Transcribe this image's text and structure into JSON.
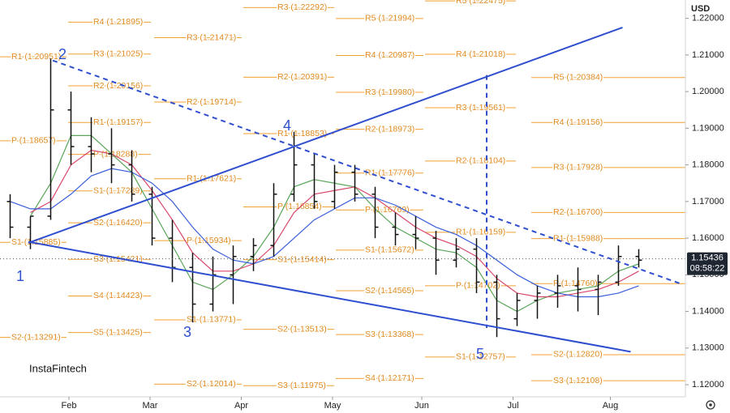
{
  "chart_data": {
    "type": "ohlc",
    "currency": "USD",
    "watermark": "InstaFintech",
    "ylim": [
      1.1167,
      1.225
    ],
    "yticks": [
      {
        "value": 1.22,
        "label": "1.22000"
      },
      {
        "value": 1.21,
        "label": "1.21000"
      },
      {
        "value": 1.2,
        "label": "1.20000"
      },
      {
        "value": 1.19,
        "label": "1.19000"
      },
      {
        "value": 1.18,
        "label": "1.18000"
      },
      {
        "value": 1.17,
        "label": "1.17000"
      },
      {
        "value": 1.16,
        "label": "1.16000"
      },
      {
        "value": 1.15,
        "label": "1.15000"
      },
      {
        "value": 1.14,
        "label": "1.14000"
      },
      {
        "value": 1.13,
        "label": "1.13000"
      },
      {
        "value": 1.12,
        "label": "1.12000"
      }
    ],
    "xlim": [
      0,
      33.8
    ],
    "xticks": [
      {
        "value": 3.4,
        "label": "Feb"
      },
      {
        "value": 7.4,
        "label": "Mar"
      },
      {
        "value": 11.9,
        "label": "Apr"
      },
      {
        "value": 16.4,
        "label": "May"
      },
      {
        "value": 20.8,
        "label": "Jun"
      },
      {
        "value": 25.3,
        "label": "Jul"
      },
      {
        "value": 30.1,
        "label": "Aug"
      }
    ],
    "grid": false,
    "bar_color": "#111111",
    "open": [
      1.17,
      1.163,
      1.166,
      1.195,
      1.185,
      1.183,
      1.18,
      1.172,
      1.16,
      1.152,
      1.142,
      1.15,
      1.155,
      1.158,
      1.172,
      1.18,
      1.17,
      1.178,
      1.172,
      1.163,
      1.161,
      1.16,
      1.154,
      1.157,
      1.148,
      1.138,
      1.143,
      1.145,
      1.147,
      1.146,
      1.148,
      1.155
    ],
    "high": [
      1.172,
      1.166,
      1.209,
      1.2,
      1.193,
      1.19,
      1.184,
      1.174,
      1.165,
      1.156,
      1.155,
      1.158,
      1.16,
      1.175,
      1.189,
      1.183,
      1.18,
      1.18,
      1.174,
      1.167,
      1.166,
      1.162,
      1.16,
      1.16,
      1.15,
      1.145,
      1.147,
      1.15,
      1.152,
      1.15,
      1.158,
      1.157
    ],
    "low": [
      1.16,
      1.157,
      1.165,
      1.18,
      1.178,
      1.175,
      1.17,
      1.158,
      1.148,
      1.137,
      1.14,
      1.142,
      1.151,
      1.155,
      1.17,
      1.168,
      1.168,
      1.17,
      1.16,
      1.158,
      1.157,
      1.15,
      1.152,
      1.145,
      1.133,
      1.136,
      1.138,
      1.141,
      1.14,
      1.139,
      1.147,
      1.152
    ],
    "close": [
      1.163,
      1.166,
      1.195,
      1.185,
      1.183,
      1.18,
      1.172,
      1.16,
      1.152,
      1.142,
      1.15,
      1.155,
      1.158,
      1.172,
      1.18,
      1.17,
      1.178,
      1.172,
      1.163,
      1.161,
      1.16,
      1.154,
      1.157,
      1.148,
      1.138,
      1.143,
      1.145,
      1.147,
      1.146,
      1.148,
      1.155,
      1.154
    ],
    "moving_averages": [
      {
        "color": "#5aa55a",
        "values": [
          null,
          1.166,
          1.175,
          1.188,
          1.188,
          1.183,
          1.178,
          1.168,
          1.158,
          1.148,
          1.146,
          1.15,
          1.155,
          1.163,
          1.174,
          1.176,
          1.175,
          1.174,
          1.168,
          1.163,
          1.16,
          1.157,
          1.156,
          1.152,
          1.143,
          1.14,
          1.143,
          1.145,
          1.146,
          1.147,
          1.151,
          1.153
        ]
      },
      {
        "color": "#d9476b",
        "values": [
          null,
          1.167,
          1.17,
          1.18,
          1.184,
          1.183,
          1.18,
          1.173,
          1.165,
          1.156,
          1.151,
          1.151,
          1.153,
          1.158,
          1.167,
          1.172,
          1.173,
          1.174,
          1.171,
          1.167,
          1.163,
          1.16,
          1.158,
          1.155,
          1.149,
          1.145,
          1.144,
          1.144,
          1.145,
          1.146,
          1.148,
          1.151
        ]
      },
      {
        "color": "#3a5fd9",
        "values": [
          1.17,
          1.168,
          1.168,
          1.172,
          1.177,
          1.179,
          1.178,
          1.175,
          1.17,
          1.163,
          1.157,
          1.154,
          1.153,
          1.155,
          1.16,
          1.165,
          1.168,
          1.171,
          1.171,
          1.169,
          1.166,
          1.163,
          1.161,
          1.158,
          1.154,
          1.15,
          1.147,
          1.145,
          1.144,
          1.144,
          1.145,
          1.147
        ]
      }
    ],
    "pivot_color": "#f0a030",
    "pivot_columns": [
      {
        "levels": [
          {
            "label": "R1 (1.20951)",
            "value": 1.20951
          },
          {
            "label": "P (1.18657)",
            "value": 1.18657
          },
          {
            "label": "S1 (1.15885)",
            "value": 1.15885
          },
          {
            "label": "S2 (1.13291)",
            "value": 1.13291
          }
        ]
      },
      {
        "levels": [
          {
            "label": "R4 (1.21895)",
            "value": 1.21895
          },
          {
            "label": "R3 (1.21025)",
            "value": 1.21025
          },
          {
            "label": "R2 (1.20156)",
            "value": 1.20156
          },
          {
            "label": "R1 (1.19157)",
            "value": 1.19157
          },
          {
            "label": "P (1.18288)",
            "value": 1.18288
          },
          {
            "label": "S1 (1.17289)",
            "value": 1.17289
          },
          {
            "label": "S2 (1.16420)",
            "value": 1.1642
          },
          {
            "label": "S3 (1.15421)",
            "value": 1.15421
          },
          {
            "label": "S4 (1.14423)",
            "value": 1.14423
          },
          {
            "label": "S5 (1.13425)",
            "value": 1.13425
          }
        ]
      },
      {
        "levels": [
          {
            "label": "R3 (1.21471)",
            "value": 1.21471
          },
          {
            "label": "R2 (1.19714)",
            "value": 1.19714
          },
          {
            "label": "R1 (1.17621)",
            "value": 1.17621
          },
          {
            "label": "P (1.15934)",
            "value": 1.15934
          },
          {
            "label": "S1 (1.13771)",
            "value": 1.13771
          },
          {
            "label": "S2 (1.12014)",
            "value": 1.12014
          }
        ]
      },
      {
        "levels": [
          {
            "label": "R3 (1.22292)",
            "value": 1.22292
          },
          {
            "label": "R2 (1.20391)",
            "value": 1.20391
          },
          {
            "label": "R1 (1.18853)",
            "value": 1.18853
          },
          {
            "label": "P (1.16854)",
            "value": 1.16854
          },
          {
            "label": "S1 (1.15414)",
            "value": 1.15414
          },
          {
            "label": "S2 (1.13513)",
            "value": 1.13513
          },
          {
            "label": "S3 (1.11975)",
            "value": 1.11975
          }
        ]
      },
      {
        "levels": [
          {
            "label": "R5 (1.21994)",
            "value": 1.21994
          },
          {
            "label": "R4 (1.20987)",
            "value": 1.20987
          },
          {
            "label": "R3 (1.19980)",
            "value": 1.1998
          },
          {
            "label": "R2 (1.18973)",
            "value": 1.18973
          },
          {
            "label": "R1 (1.17776)",
            "value": 1.17776
          },
          {
            "label": "P (1.16769)",
            "value": 1.16769
          },
          {
            "label": "S1 (1.15672)",
            "value": 1.15672
          },
          {
            "label": "S2 (1.14565)",
            "value": 1.14565
          },
          {
            "label": "S3 (1.13368)",
            "value": 1.13368
          },
          {
            "label": "S4 (1.12171)",
            "value": 1.12171
          }
        ]
      },
      {
        "levels": [
          {
            "label": "R5 (1.22475)",
            "value": 1.22475
          },
          {
            "label": "R4 (1.21018)",
            "value": 1.21018
          },
          {
            "label": "R3 (1.19561)",
            "value": 1.19561
          },
          {
            "label": "R2 (1.18104)",
            "value": 1.18104
          },
          {
            "label": "R1 (1.16159)",
            "value": 1.16159
          },
          {
            "label": "P (1.14702)",
            "value": 1.14702
          },
          {
            "label": "S1 (1.12757)",
            "value": 1.12757
          }
        ]
      },
      {
        "levels": [
          {
            "label": "R5 (1.20384)",
            "value": 1.20384
          },
          {
            "label": "R4 (1.19156)",
            "value": 1.19156
          },
          {
            "label": "R3 (1.17928)",
            "value": 1.17928
          },
          {
            "label": "R2 (1.16700)",
            "value": 1.167
          },
          {
            "label": "R1 (1.15988)",
            "value": 1.15988
          },
          {
            "label": "P (1.14760)",
            "value": 1.1476
          },
          {
            "label": "S2 (1.12820)",
            "value": 1.1282
          },
          {
            "label": "S3 (1.12108)",
            "value": 1.12108
          }
        ]
      }
    ],
    "trendline_color": "#2f4fcf",
    "trendlines": [
      {
        "x": [
          1.4,
          30.7
        ],
        "y": [
          1.1587,
          1.2175
        ],
        "dashed": false
      },
      {
        "x": [
          1.4,
          31.1
        ],
        "y": [
          1.159,
          1.129
        ],
        "dashed": false
      },
      {
        "x": [
          2.6,
          33.6
        ],
        "y": [
          1.2085,
          1.1475
        ],
        "dashed": true
      },
      {
        "x": [
          24.0,
          24.0
        ],
        "y": [
          1.2045,
          1.1355
        ],
        "dashed": true
      }
    ],
    "waves": [
      "1",
      "2",
      "3",
      "4",
      "5"
    ],
    "last_price": 1.15436,
    "countdown": "08:58:22"
  }
}
